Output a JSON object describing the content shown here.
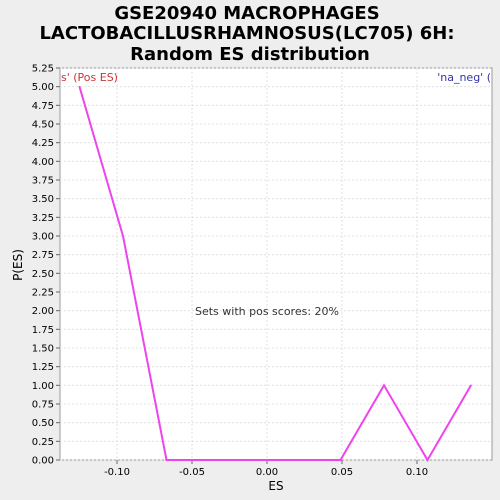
{
  "chart_data": {
    "type": "line",
    "title_lines": [
      "GSE20940 MACROPHAGES",
      "LACTOBACILLUSRHAMNOSUS(LC705) 6H:",
      "Random ES distribution"
    ],
    "xlabel": "ES",
    "ylabel": "P(ES)",
    "xlim": [
      -0.138,
      0.15
    ],
    "ylim": [
      0,
      5.25
    ],
    "x_ticks": [
      -0.1,
      -0.05,
      0.0,
      0.05,
      0.1
    ],
    "x_tick_labels": [
      "-0.10",
      "-0.05",
      "0.00",
      "0.05",
      "0.10"
    ],
    "y_ticks": [
      0,
      0.25,
      0.5,
      0.75,
      1.0,
      1.25,
      1.5,
      1.75,
      2.0,
      2.25,
      2.5,
      2.75,
      3.0,
      3.25,
      3.5,
      3.75,
      4.0,
      4.25,
      4.5,
      4.75,
      5.0,
      5.25
    ],
    "y_tick_labels": [
      "0.00",
      "0.25",
      "0.50",
      "0.75",
      "1.00",
      "1.25",
      "1.50",
      "1.75",
      "2.00",
      "2.25",
      "2.50",
      "2.75",
      "3.00",
      "3.25",
      "3.50",
      "3.75",
      "4.00",
      "4.25",
      "4.50",
      "4.75",
      "5.00",
      "5.25"
    ],
    "grid": true,
    "series": [
      {
        "color": "#ee44ee",
        "x": [
          -0.125,
          -0.096,
          -0.067,
          -0.038,
          -0.009,
          0.02,
          0.049,
          0.078,
          0.107,
          0.136
        ],
        "y": [
          5.0,
          3.0,
          0.0,
          0.0,
          0.0,
          0.0,
          0.0,
          1.0,
          0.0,
          1.0
        ]
      }
    ],
    "annotations": {
      "left": {
        "text": "s' (Pos ES)",
        "color": "#cc3333"
      },
      "right": {
        "text": "'na_neg' (",
        "color": "#3333aa"
      },
      "center": {
        "text": "Sets with pos scores: 20%",
        "color": "#333333"
      }
    }
  }
}
